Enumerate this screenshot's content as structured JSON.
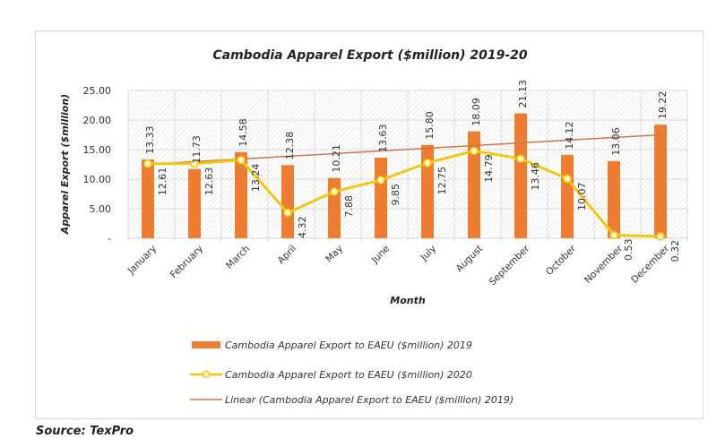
{
  "source_label": "Source: TexPro",
  "colors": {
    "bar_2019": "#ED7D31",
    "line_2020": "#F2C80F",
    "trend_2019": "#C9774A",
    "grid": "#d9d9d9",
    "text": "#333333"
  },
  "chart_data": {
    "type": "bar",
    "title": "Cambodia Apparel Export ($million) 2019-20",
    "xlabel": "Month",
    "ylabel": "Apparel Export ($million)",
    "ylim": [
      0,
      25
    ],
    "yticks": [
      0,
      5,
      10,
      15,
      20,
      25
    ],
    "ytick_labels": [
      "-",
      "5.00",
      "10.00",
      "15.00",
      "20.00",
      "25.00"
    ],
    "grid": true,
    "legend_position": "bottom",
    "categories": [
      "January",
      "February",
      "March",
      "April",
      "May",
      "June",
      "July",
      "August",
      "September",
      "October",
      "November",
      "December"
    ],
    "series": [
      {
        "name": "Cambodia Apparel Export to EAEU ($million) 2019",
        "type": "bar",
        "values": [
          13.33,
          11.73,
          14.58,
          12.38,
          10.21,
          13.63,
          15.8,
          18.09,
          21.13,
          14.12,
          13.06,
          19.22
        ],
        "labels": [
          "13.33",
          "11.73",
          "14.58",
          "12.38",
          "10.21",
          "13.63",
          "15.80",
          "18.09",
          "21.13",
          "14.12",
          "13.06",
          "19.22"
        ]
      },
      {
        "name": "Cambodia Apparel Export to EAEU ($million) 2020",
        "type": "line",
        "values": [
          12.61,
          12.63,
          13.24,
          4.32,
          7.88,
          9.85,
          12.75,
          14.79,
          13.46,
          10.07,
          0.53,
          0.32
        ],
        "labels": [
          "12.61",
          "12.63",
          "13.24",
          "4.32",
          "7.88",
          "9.85",
          "12.75",
          "14.79",
          "13.46",
          "10.07",
          "0.53",
          "0.32"
        ]
      },
      {
        "name": "Linear (Cambodia Apparel Export to EAEU ($million) 2019)",
        "type": "trendline",
        "start": 12.5,
        "end": 17.5
      }
    ]
  }
}
